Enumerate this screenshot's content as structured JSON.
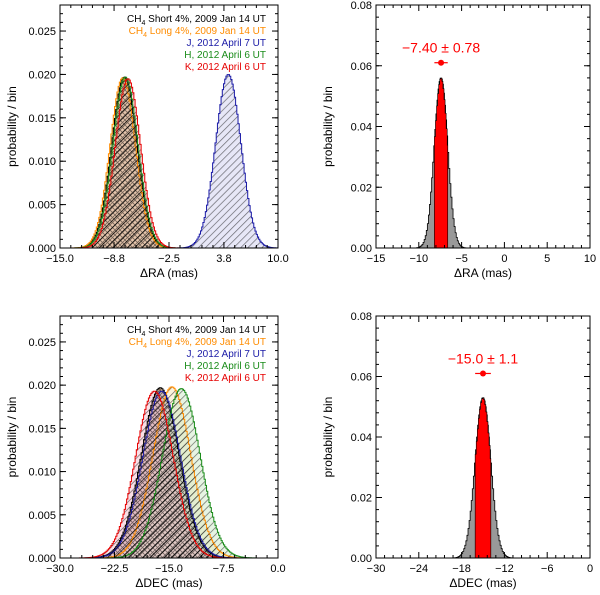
{
  "chart_data": [
    {
      "id": "ra-dist",
      "type": "area",
      "title": "",
      "xlabel": "ΔRA (mas)",
      "ylabel": "probability / bin",
      "xlim": [
        -15.0,
        10.0
      ],
      "ylim": [
        0.0,
        0.028
      ],
      "xticks": [
        -15.0,
        -8.8,
        -2.5,
        3.8,
        10.0
      ],
      "xtick_labels": [
        "−15.0",
        "−8.8",
        "−2.5",
        "3.8",
        "10.0"
      ],
      "yticks": [
        0.0,
        0.005,
        0.01,
        0.015,
        0.02,
        0.025
      ],
      "ytick_labels": [
        "0.000",
        "0.005",
        "0.010",
        "0.015",
        "0.020",
        "0.025"
      ],
      "legend_position": "top-right",
      "series": [
        {
          "name": "CH4 Short 4%",
          "label_main": "CH",
          "label_sub": "4",
          "label_rest": " Short 4%, 2009 Jan 14 UT",
          "color": "#000000",
          "mean": -7.6,
          "sigma": 1.45,
          "peak": 0.0197,
          "fill": "#b5651d",
          "hatch": "cross"
        },
        {
          "name": "CH4 Long 4%",
          "label_main": "CH",
          "label_sub": "4",
          "label_rest": " Long 4%, 2009 Jan 14 UT",
          "color": "#ff8c00",
          "mean": -7.8,
          "sigma": 1.45,
          "peak": 0.0196,
          "fill": "#f4c27a",
          "hatch": "diag"
        },
        {
          "name": "J",
          "label_main": "J, 2012 April 7 UT",
          "label_sub": "",
          "label_rest": "",
          "color": "#1a1aa6",
          "mean": 4.3,
          "sigma": 1.45,
          "peak": 0.02,
          "fill": "#c9c9ee",
          "hatch": "diag"
        },
        {
          "name": "H",
          "label_main": "H, 2012 April 6 UT",
          "label_sub": "",
          "label_rest": "",
          "color": "#1a8c1a",
          "mean": -7.5,
          "sigma": 1.45,
          "peak": 0.0197,
          "fill": "#c7e6c0",
          "hatch": "diag"
        },
        {
          "name": "K",
          "label_main": "K, 2012 April 6 UT",
          "label_sub": "",
          "label_rest": "",
          "color": "#e60000",
          "mean": -7.2,
          "sigma": 1.45,
          "peak": 0.0195,
          "fill": "#f3b7b7",
          "hatch": "diag"
        }
      ]
    },
    {
      "id": "ra-combined",
      "type": "area",
      "title": "",
      "xlabel": "ΔRA (mas)",
      "ylabel": "probability / bin",
      "xlim": [
        -15,
        10
      ],
      "ylim": [
        0.0,
        0.08
      ],
      "xticks": [
        -15,
        -10,
        -5,
        0,
        5,
        10
      ],
      "xtick_labels": [
        "−15",
        "−10",
        "−5",
        "0",
        "5",
        "10"
      ],
      "yticks": [
        0.0,
        0.02,
        0.04,
        0.06,
        0.08
      ],
      "ytick_labels": [
        "0.00",
        "0.02",
        "0.04",
        "0.06",
        "0.08"
      ],
      "distribution": {
        "mean": -7.4,
        "sigma": 0.78,
        "peak": 0.056,
        "fill": "#999999",
        "core_fill": "#ff0000"
      },
      "marker": {
        "x": -7.4,
        "y": 0.061,
        "xerr": 0.78,
        "color": "#ff0000"
      },
      "annotation": "−7.40 ± 0.78"
    },
    {
      "id": "dec-dist",
      "type": "area",
      "title": "",
      "xlabel": "ΔDEC (mas)",
      "ylabel": "probability / bin",
      "xlim": [
        -30.0,
        0.0
      ],
      "ylim": [
        0.0,
        0.028
      ],
      "xticks": [
        -30.0,
        -22.5,
        -15.0,
        -7.5,
        0.0
      ],
      "xtick_labels": [
        "−30.0",
        "−22.5",
        "−15.0",
        "−7.5",
        "0.0"
      ],
      "yticks": [
        0.0,
        0.005,
        0.01,
        0.015,
        0.02,
        0.025
      ],
      "ytick_labels": [
        "0.000",
        "0.005",
        "0.010",
        "0.015",
        "0.020",
        "0.025"
      ],
      "legend_position": "top-right",
      "series": [
        {
          "name": "CH4 Short 4%",
          "label_main": "CH",
          "label_sub": "4",
          "label_rest": " Short 4%, 2009 Jan 14 UT",
          "color": "#000000",
          "mean": -16.2,
          "sigma": 2.6,
          "peak": 0.0197,
          "fill": "#b5651d",
          "hatch": "cross"
        },
        {
          "name": "CH4 Long 4%",
          "label_main": "CH",
          "label_sub": "4",
          "label_rest": " Long 4%, 2009 Jan 14 UT",
          "color": "#ff8c00",
          "mean": -14.6,
          "sigma": 2.6,
          "peak": 0.0198,
          "fill": "#f4e3b0",
          "hatch": "diag"
        },
        {
          "name": "J",
          "label_main": "J, 2012 April 7 UT",
          "label_sub": "",
          "label_rest": "",
          "color": "#1a1aa6",
          "mean": -16.0,
          "sigma": 2.6,
          "peak": 0.0193,
          "fill": "#c9c9ee",
          "hatch": "diag"
        },
        {
          "name": "H",
          "label_main": "H, 2012 April 6 UT",
          "label_sub": "",
          "label_rest": "",
          "color": "#1a8c1a",
          "mean": -13.3,
          "sigma": 2.6,
          "peak": 0.0196,
          "fill": "#c7e6c0",
          "hatch": "diag"
        },
        {
          "name": "K",
          "label_main": "K, 2012 April 6 UT",
          "label_sub": "",
          "label_rest": "",
          "color": "#e60000",
          "mean": -17.0,
          "sigma": 2.6,
          "peak": 0.0193,
          "fill": "#f3b7c8",
          "hatch": "diag"
        }
      ]
    },
    {
      "id": "dec-combined",
      "type": "area",
      "title": "",
      "xlabel": "ΔDEC (mas)",
      "ylabel": "probability / bin",
      "xlim": [
        -30,
        0
      ],
      "ylim": [
        0.0,
        0.08
      ],
      "xticks": [
        -30,
        -24,
        -18,
        -12,
        -6,
        0
      ],
      "xtick_labels": [
        "−30",
        "−24",
        "−18",
        "−12",
        "−6",
        "0"
      ],
      "yticks": [
        0.0,
        0.02,
        0.04,
        0.06,
        0.08
      ],
      "ytick_labels": [
        "0.00",
        "0.02",
        "0.04",
        "0.06",
        "0.08"
      ],
      "distribution": {
        "mean": -15.0,
        "sigma": 1.1,
        "peak": 0.053,
        "fill": "#999999",
        "core_fill": "#ff0000"
      },
      "marker": {
        "x": -15.0,
        "y": 0.061,
        "xerr": 1.1,
        "color": "#ff0000"
      },
      "annotation": "−15.0 ± 1.1"
    }
  ]
}
